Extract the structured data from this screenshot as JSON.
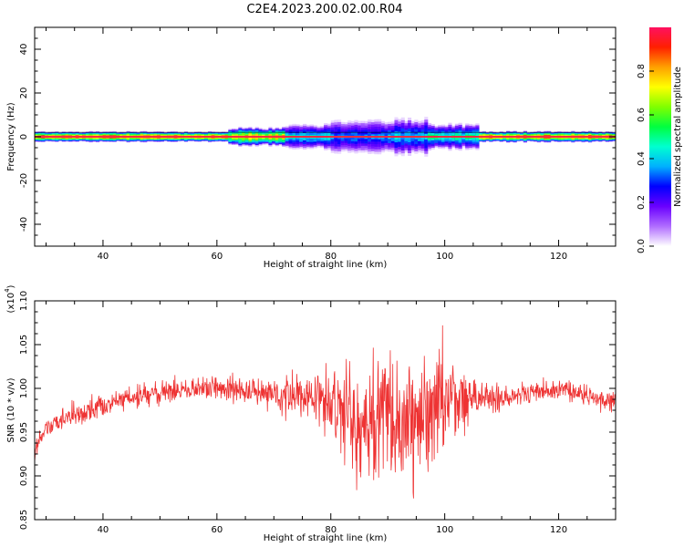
{
  "title": "C2E4.2023.200.02.00.R04",
  "chart_data": [
    {
      "type": "heatmap",
      "title": "C2E4.2023.200.02.00.R04",
      "xlabel": "Height of straight line (km)",
      "ylabel": "Frequency (Hz)",
      "xlim": [
        28,
        130
      ],
      "ylim": [
        -50,
        50
      ],
      "x_ticks": [
        40,
        60,
        80,
        100,
        120
      ],
      "y_ticks": [
        -40,
        -20,
        0,
        20,
        40
      ],
      "x_tick_labels": [
        "40",
        "60",
        "80",
        "100",
        "120"
      ],
      "y_tick_labels": [
        "-40",
        "-20",
        "0",
        "20",
        "40"
      ],
      "center_line_frequency": 0,
      "band_segments": [
        {
          "x_start": 28,
          "x_end": 62,
          "half_width_hz": 1.5,
          "amplitude": 0.95
        },
        {
          "x_start": 62,
          "x_end": 72,
          "half_width_hz": 2.5,
          "amplitude": 0.8
        },
        {
          "x_start": 72,
          "x_end": 80,
          "half_width_hz": 3.5,
          "amplitude": 0.45
        },
        {
          "x_start": 80,
          "x_end": 90,
          "half_width_hz": 4.5,
          "amplitude": 0.35
        },
        {
          "x_start": 90,
          "x_end": 97,
          "half_width_hz": 5,
          "amplitude": 0.4
        },
        {
          "x_start": 97,
          "x_end": 106,
          "half_width_hz": 3.5,
          "amplitude": 0.5
        },
        {
          "x_start": 106,
          "x_end": 130,
          "half_width_hz": 1.5,
          "amplitude": 0.95
        }
      ],
      "colorbar": {
        "label": "Normalized spectral amplitude",
        "range": [
          0,
          1
        ],
        "ticks": [
          "0.0",
          "0.2",
          "0.4",
          "0.6",
          "0.8"
        ],
        "tick_values": [
          0,
          0.2,
          0.4,
          0.6,
          0.8
        ],
        "colors": [
          "#ffffff",
          "#b06cff",
          "#6a00ff",
          "#0000ff",
          "#00b0ff",
          "#00ffd0",
          "#00ff40",
          "#80ff00",
          "#ffff00",
          "#ffa000",
          "#ff2000",
          "#ff1060"
        ]
      }
    },
    {
      "type": "line",
      "xlabel": "Height of straight line (km)",
      "ylabel": "SNR (10 * v/v)",
      "y_multiplier": "(x10",
      "y_multiplier_exp": "4",
      "y_multiplier_close": ")",
      "xlim": [
        28,
        130
      ],
      "ylim": [
        0.85,
        1.1
      ],
      "x_ticks": [
        40,
        60,
        80,
        100,
        120
      ],
      "y_ticks": [
        0.85,
        0.9,
        0.95,
        1.0,
        1.05,
        1.1
      ],
      "x_tick_labels": [
        "40",
        "60",
        "80",
        "100",
        "120"
      ],
      "y_tick_labels": [
        "0.85",
        "0.90",
        "0.95",
        "1.00",
        "1.05",
        "1.10"
      ],
      "color": "#ee3333",
      "trend_x": [
        28,
        30,
        35,
        40,
        45,
        50,
        55,
        60,
        65,
        70,
        75,
        80,
        85,
        90,
        95,
        100,
        105,
        110,
        115,
        120,
        125,
        130
      ],
      "trend_y": [
        0.93,
        0.955,
        0.97,
        0.98,
        0.99,
        0.995,
        0.998,
        1.0,
        0.998,
        0.995,
        0.99,
        0.985,
        0.97,
        0.965,
        0.97,
        0.985,
        0.99,
        0.99,
        0.995,
        1.0,
        0.99,
        0.985
      ],
      "noise_x": [
        28,
        40,
        60,
        70,
        78,
        82,
        86,
        90,
        94,
        98,
        102,
        106,
        112,
        130
      ],
      "noise_amp": [
        0.015,
        0.015,
        0.015,
        0.02,
        0.04,
        0.07,
        0.09,
        0.09,
        0.09,
        0.08,
        0.05,
        0.02,
        0.015,
        0.012
      ]
    }
  ]
}
